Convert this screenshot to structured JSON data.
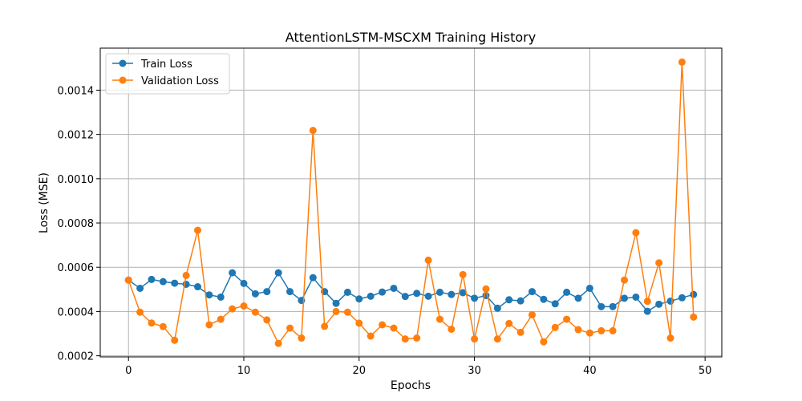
{
  "chart_data": {
    "type": "line",
    "title": "AttentionLSTM-MSCXM Training History",
    "xlabel": "Epochs",
    "ylabel": "Loss (MSE)",
    "xlim": [
      -2.45,
      51.45
    ],
    "ylim": [
      0.000195,
      0.00159
    ],
    "x_ticks": [
      0,
      10,
      20,
      30,
      40,
      50
    ],
    "y_ticks": [
      0.0002,
      0.0004,
      0.0006,
      0.0008,
      0.001,
      0.0012,
      0.0014
    ],
    "y_tick_labels": [
      "0.0002",
      "0.0004",
      "0.0006",
      "0.0008",
      "0.0010",
      "0.0012",
      "0.0014"
    ],
    "grid": true,
    "legend_position": "top-left",
    "x": [
      0,
      1,
      2,
      3,
      4,
      5,
      6,
      7,
      8,
      9,
      10,
      11,
      12,
      13,
      14,
      15,
      16,
      17,
      18,
      19,
      20,
      21,
      22,
      23,
      24,
      25,
      26,
      27,
      28,
      29,
      30,
      31,
      32,
      33,
      34,
      35,
      36,
      37,
      38,
      39,
      40,
      41,
      42,
      43,
      44,
      45,
      46,
      47,
      48,
      49
    ],
    "series": [
      {
        "name": "Train Loss",
        "color": "#1f77b4",
        "values": [
          0.000542,
          0.000505,
          0.000545,
          0.000535,
          0.000528,
          0.000523,
          0.000512,
          0.000475,
          0.000465,
          0.000575,
          0.000527,
          0.00048,
          0.00049,
          0.000575,
          0.00049,
          0.00045,
          0.000553,
          0.00049,
          0.000437,
          0.000487,
          0.000457,
          0.000469,
          0.000488,
          0.000505,
          0.000468,
          0.000482,
          0.000469,
          0.000487,
          0.000477,
          0.000485,
          0.00046,
          0.000472,
          0.000415,
          0.000453,
          0.000448,
          0.00049,
          0.000455,
          0.000435,
          0.000487,
          0.00046,
          0.000505,
          0.000422,
          0.000422,
          0.00046,
          0.000465,
          0.000401,
          0.000433,
          0.000447,
          0.000462,
          0.000477
        ]
      },
      {
        "name": "Validation Loss",
        "color": "#ff7f0e",
        "values": [
          0.000542,
          0.000397,
          0.000348,
          0.000332,
          0.00027,
          0.000563,
          0.000767,
          0.00034,
          0.000365,
          0.000412,
          0.000425,
          0.000397,
          0.000362,
          0.000256,
          0.000325,
          0.00028,
          0.001218,
          0.000333,
          0.0004,
          0.000397,
          0.000347,
          0.000289,
          0.00034,
          0.000325,
          0.000276,
          0.00028,
          0.000632,
          0.000365,
          0.00032,
          0.000567,
          0.000276,
          0.000502,
          0.000276,
          0.000346,
          0.000306,
          0.000385,
          0.000263,
          0.000328,
          0.000365,
          0.000318,
          0.000303,
          0.000313,
          0.000313,
          0.000542,
          0.000756,
          0.000446,
          0.00062,
          0.00028,
          0.001527,
          0.000375
        ]
      }
    ]
  }
}
